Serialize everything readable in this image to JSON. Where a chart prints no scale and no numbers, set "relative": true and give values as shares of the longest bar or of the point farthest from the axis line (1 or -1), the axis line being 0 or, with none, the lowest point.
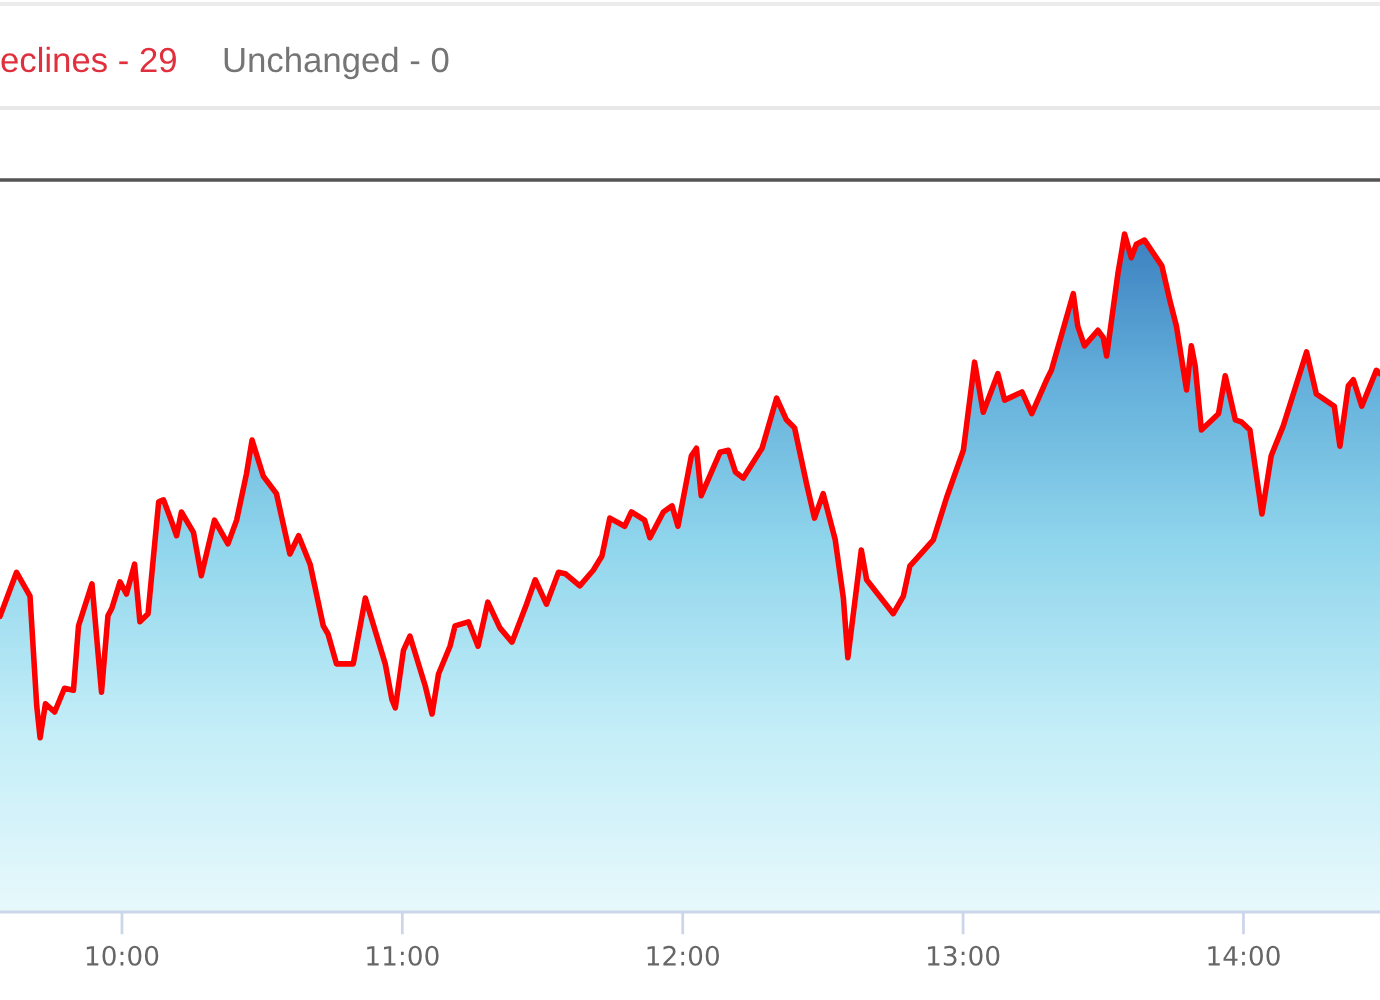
{
  "chart_data": {
    "type": "area",
    "relative": true,
    "annotations": [
      "eclines - 29",
      "Unchanged - 0"
    ],
    "xlim": [
      9.565,
      14.487
    ],
    "xticks": [
      {
        "value": 10,
        "label": "10:00"
      },
      {
        "value": 11,
        "label": "11:00"
      },
      {
        "value": 12,
        "label": "12:00"
      },
      {
        "value": 13,
        "label": "13:00"
      },
      {
        "value": 14,
        "label": "14:00"
      }
    ],
    "line_style": "solid",
    "marker": "none",
    "grid": false,
    "x": [
      9.565,
      9.624,
      9.672,
      9.696,
      9.708,
      9.727,
      9.76,
      9.795,
      9.827,
      9.845,
      9.893,
      9.927,
      9.95,
      9.964,
      9.993,
      10.016,
      10.045,
      10.064,
      10.093,
      10.131,
      10.148,
      10.178,
      10.195,
      10.212,
      10.255,
      10.283,
      10.33,
      10.378,
      10.409,
      10.444,
      10.464,
      10.504,
      10.551,
      10.599,
      10.63,
      10.671,
      10.718,
      10.735,
      10.765,
      10.825,
      10.868,
      10.939,
      10.963,
      10.975,
      11.004,
      11.027,
      11.082,
      11.106,
      11.129,
      11.17,
      11.188,
      11.236,
      11.27,
      11.305,
      11.348,
      11.391,
      11.443,
      11.474,
      11.514,
      11.557,
      11.581,
      11.633,
      11.681,
      11.712,
      11.74,
      11.793,
      11.817,
      11.864,
      11.883,
      11.931,
      11.962,
      11.983,
      12.031,
      12.049,
      12.066,
      12.133,
      12.163,
      12.188,
      12.216,
      12.283,
      12.335,
      12.37,
      12.399,
      12.442,
      12.47,
      12.501,
      12.544,
      12.573,
      12.589,
      12.637,
      12.656,
      12.751,
      12.787,
      12.81,
      12.894,
      12.941,
      13.001,
      13.041,
      13.072,
      13.124,
      13.148,
      13.21,
      13.245,
      13.298,
      13.315,
      13.362,
      13.393,
      13.409,
      13.433,
      13.481,
      13.5,
      13.512,
      13.552,
      13.576,
      13.6,
      13.618,
      13.647,
      13.709,
      13.737,
      13.761,
      13.797,
      13.814,
      13.828,
      13.85,
      13.911,
      13.935,
      13.971,
      13.992,
      14.023,
      14.066,
      14.099,
      14.142,
      14.225,
      14.26,
      14.324,
      14.344,
      14.374,
      14.392,
      14.422,
      14.474,
      14.487
    ],
    "series": [
      {
        "color": "#86cde8",
        "values": [
          0.436,
          0.501,
          0.466,
          0.304,
          0.257,
          0.307,
          0.295,
          0.33,
          0.327,
          0.422,
          0.484,
          0.324,
          0.437,
          0.448,
          0.487,
          0.469,
          0.513,
          0.428,
          0.44,
          0.605,
          0.608,
          0.575,
          0.555,
          0.59,
          0.56,
          0.496,
          0.578,
          0.543,
          0.578,
          0.646,
          0.696,
          0.643,
          0.617,
          0.528,
          0.555,
          0.513,
          0.422,
          0.41,
          0.366,
          0.366,
          0.463,
          0.366,
          0.313,
          0.301,
          0.386,
          0.407,
          0.333,
          0.292,
          0.351,
          0.392,
          0.422,
          0.428,
          0.392,
          0.457,
          0.419,
          0.398,
          0.454,
          0.49,
          0.454,
          0.501,
          0.499,
          0.481,
          0.504,
          0.525,
          0.581,
          0.569,
          0.59,
          0.578,
          0.552,
          0.59,
          0.599,
          0.569,
          0.673,
          0.684,
          0.614,
          0.678,
          0.681,
          0.649,
          0.64,
          0.684,
          0.758,
          0.726,
          0.714,
          0.631,
          0.581,
          0.617,
          0.549,
          0.463,
          0.375,
          0.534,
          0.49,
          0.44,
          0.466,
          0.51,
          0.549,
          0.611,
          0.681,
          0.811,
          0.737,
          0.794,
          0.755,
          0.767,
          0.735,
          0.785,
          0.799,
          0.867,
          0.912,
          0.864,
          0.835,
          0.858,
          0.847,
          0.82,
          0.941,
          1,
          0.965,
          0.985,
          0.991,
          0.953,
          0.903,
          0.864,
          0.77,
          0.835,
          0.805,
          0.711,
          0.735,
          0.791,
          0.726,
          0.723,
          0.711,
          0.587,
          0.673,
          0.717,
          0.826,
          0.764,
          0.746,
          0.687,
          0.776,
          0.785,
          0.746,
          0.799,
          0.794
        ]
      },
      {
        "type": "line",
        "color": "#ff0000",
        "values": [
          0.436,
          0.501,
          0.466,
          0.304,
          0.257,
          0.307,
          0.295,
          0.33,
          0.327,
          0.422,
          0.484,
          0.324,
          0.437,
          0.448,
          0.487,
          0.469,
          0.513,
          0.428,
          0.44,
          0.605,
          0.608,
          0.575,
          0.555,
          0.59,
          0.56,
          0.496,
          0.578,
          0.543,
          0.578,
          0.646,
          0.696,
          0.643,
          0.617,
          0.528,
          0.555,
          0.513,
          0.422,
          0.41,
          0.366,
          0.366,
          0.463,
          0.366,
          0.313,
          0.301,
          0.386,
          0.407,
          0.333,
          0.292,
          0.351,
          0.392,
          0.422,
          0.428,
          0.392,
          0.457,
          0.419,
          0.398,
          0.454,
          0.49,
          0.454,
          0.501,
          0.499,
          0.481,
          0.504,
          0.525,
          0.581,
          0.569,
          0.59,
          0.578,
          0.552,
          0.59,
          0.599,
          0.569,
          0.673,
          0.684,
          0.614,
          0.678,
          0.681,
          0.649,
          0.64,
          0.684,
          0.758,
          0.726,
          0.714,
          0.631,
          0.581,
          0.617,
          0.549,
          0.463,
          0.375,
          0.534,
          0.49,
          0.44,
          0.466,
          0.51,
          0.549,
          0.611,
          0.681,
          0.811,
          0.737,
          0.794,
          0.755,
          0.767,
          0.735,
          0.785,
          0.799,
          0.867,
          0.912,
          0.864,
          0.835,
          0.858,
          0.847,
          0.82,
          0.941,
          1,
          0.965,
          0.985,
          0.991,
          0.953,
          0.903,
          0.864,
          0.77,
          0.835,
          0.805,
          0.711,
          0.735,
          0.791,
          0.726,
          0.723,
          0.711,
          0.587,
          0.673,
          0.717,
          0.826,
          0.764,
          0.746,
          0.687,
          0.776,
          0.785,
          0.746,
          0.799,
          0.794
        ]
      }
    ]
  }
}
